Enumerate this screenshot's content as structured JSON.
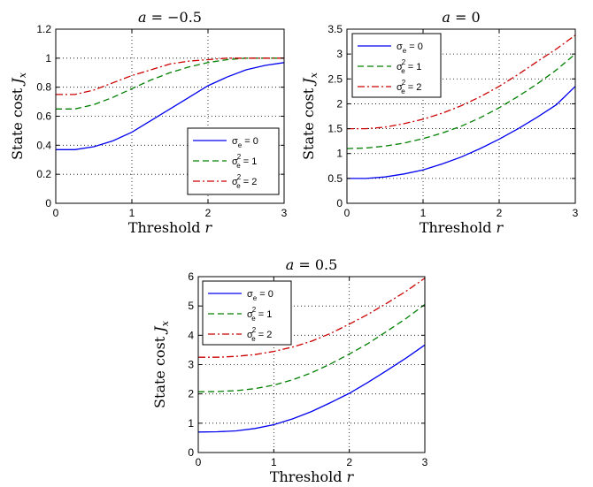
{
  "colors": {
    "sigma0": "#0000ee",
    "sigma1": "#008000",
    "sigma2": "#cc0000",
    "axis": "#000000",
    "grid": "#000000"
  },
  "chart_data": [
    {
      "type": "line",
      "title": "a = −0.5",
      "xlabel": "Threshold r",
      "ylabel": "State cost J_x",
      "xlim": [
        0,
        3
      ],
      "ylim": [
        0,
        1.2
      ],
      "xticks": [
        0,
        1,
        2,
        3
      ],
      "yticks": [
        0,
        0.2,
        0.4,
        0.6,
        0.8,
        1,
        1.2
      ],
      "grid": true,
      "legend_position": "bottom-right",
      "x": [
        0,
        0.25,
        0.5,
        0.75,
        1,
        1.25,
        1.5,
        1.75,
        2,
        2.25,
        2.5,
        2.75,
        3
      ],
      "series": [
        {
          "name": "σe = 0",
          "style": "solid",
          "values": [
            0.37,
            0.37,
            0.39,
            0.43,
            0.49,
            0.57,
            0.65,
            0.73,
            0.81,
            0.87,
            0.92,
            0.95,
            0.97
          ]
        },
        {
          "name": "σe² = 1",
          "style": "dashed",
          "values": [
            0.65,
            0.65,
            0.68,
            0.73,
            0.79,
            0.85,
            0.9,
            0.94,
            0.97,
            0.99,
            1.0,
            1.0,
            1.0
          ]
        },
        {
          "name": "σe² = 2",
          "style": "dashdot",
          "values": [
            0.75,
            0.75,
            0.78,
            0.83,
            0.88,
            0.92,
            0.96,
            0.98,
            0.99,
            1.0,
            1.0,
            1.0,
            1.0
          ]
        }
      ]
    },
    {
      "type": "line",
      "title": "a = 0",
      "xlabel": "Threshold r",
      "ylabel": "State cost J_x",
      "xlim": [
        0,
        3
      ],
      "ylim": [
        0,
        3.5
      ],
      "xticks": [
        0,
        1,
        2,
        3
      ],
      "yticks": [
        0,
        0.5,
        1,
        1.5,
        2,
        2.5,
        3,
        3.5
      ],
      "grid": true,
      "legend_position": "top-left",
      "x": [
        0,
        0.25,
        0.5,
        0.75,
        1,
        1.25,
        1.5,
        1.75,
        2,
        2.25,
        2.5,
        2.75,
        3
      ],
      "series": [
        {
          "name": "σe = 0",
          "style": "solid",
          "values": [
            0.5,
            0.5,
            0.53,
            0.59,
            0.67,
            0.79,
            0.93,
            1.1,
            1.29,
            1.5,
            1.73,
            1.98,
            2.35
          ]
        },
        {
          "name": "σe² = 1",
          "style": "dashed",
          "values": [
            1.1,
            1.11,
            1.15,
            1.21,
            1.3,
            1.41,
            1.55,
            1.72,
            1.92,
            2.15,
            2.4,
            2.68,
            3.0
          ]
        },
        {
          "name": "σe² = 2",
          "style": "dashdot",
          "values": [
            1.5,
            1.5,
            1.53,
            1.6,
            1.69,
            1.81,
            1.96,
            2.14,
            2.35,
            2.59,
            2.85,
            3.1,
            3.38
          ]
        }
      ]
    },
    {
      "type": "line",
      "title": "a = 0.5",
      "xlabel": "Threshold r",
      "ylabel": "State cost J_x",
      "xlim": [
        0,
        3
      ],
      "ylim": [
        0,
        6
      ],
      "xticks": [
        0,
        1,
        2,
        3
      ],
      "yticks": [
        0,
        1,
        2,
        3,
        4,
        5,
        6
      ],
      "grid": true,
      "legend_position": "top-left",
      "x": [
        0,
        0.25,
        0.5,
        0.75,
        1,
        1.25,
        1.5,
        1.75,
        2,
        2.25,
        2.5,
        2.75,
        3
      ],
      "series": [
        {
          "name": "σe = 0",
          "style": "solid",
          "values": [
            0.7,
            0.71,
            0.74,
            0.82,
            0.95,
            1.15,
            1.4,
            1.7,
            2.02,
            2.4,
            2.8,
            3.22,
            3.67
          ]
        },
        {
          "name": "σe² = 1",
          "style": "dashed",
          "values": [
            2.07,
            2.08,
            2.11,
            2.18,
            2.3,
            2.48,
            2.72,
            3.02,
            3.36,
            3.72,
            4.14,
            4.57,
            5.05
          ]
        },
        {
          "name": "σe² = 2",
          "style": "dashdot",
          "values": [
            3.25,
            3.25,
            3.28,
            3.34,
            3.45,
            3.6,
            3.8,
            4.06,
            4.38,
            4.72,
            5.1,
            5.5,
            5.95
          ]
        }
      ]
    }
  ]
}
